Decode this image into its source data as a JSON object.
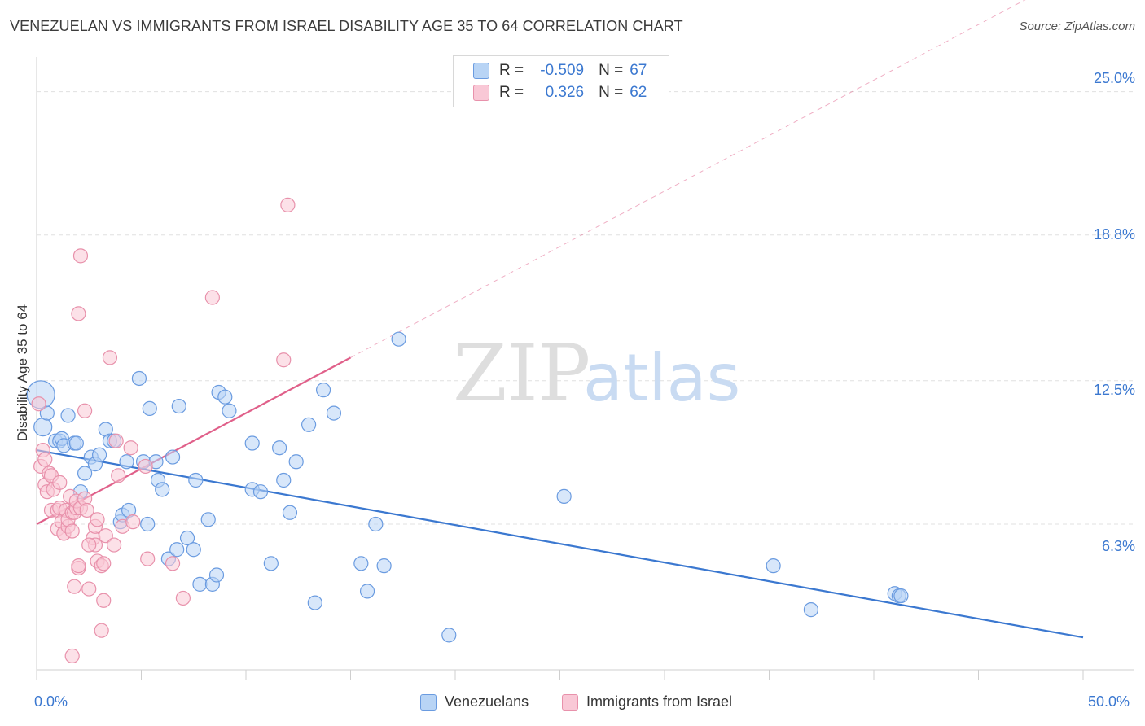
{
  "title": "VENEZUELAN VS IMMIGRANTS FROM ISRAEL DISABILITY AGE 35 TO 64 CORRELATION CHART",
  "source": "Source: ZipAtlas.com",
  "watermark": {
    "zip": "ZIP",
    "atlas": "atlas"
  },
  "legend": {
    "r_label": "R =",
    "n_label": "N =",
    "rows": [
      {
        "r": "-0.509",
        "n": "67",
        "fill": "#b8d4f5",
        "stroke": "#6a9be0"
      },
      {
        "r": "0.326",
        "n": "62",
        "fill": "#f9c8d6",
        "stroke": "#e891ab"
      }
    ]
  },
  "bottom_legend": [
    "Venezuelans",
    "Immigrants from Israel"
  ],
  "colors": {
    "blue": "#3b78d0",
    "blue_fill": "#b8d4f5",
    "pink": "#e0608a",
    "pink_fill": "#f9c8d6",
    "grid": "#e0e0e0"
  },
  "chart_data": {
    "type": "scatter",
    "title": "VENEZUELAN VS IMMIGRANTS FROM ISRAEL DISABILITY AGE 35 TO 64 CORRELATION CHART",
    "xlabel": "",
    "ylabel": "Disability Age 35 to 64",
    "xlim": [
      0,
      50
    ],
    "ylim": [
      0,
      26.5
    ],
    "x_tick_labels": [
      "0.0%",
      "50.0%"
    ],
    "y_ticks": [
      6.3,
      12.5,
      18.8,
      25.0
    ],
    "y_tick_labels": [
      "6.3%",
      "12.5%",
      "18.8%",
      "25.0%"
    ],
    "grid": true,
    "series": [
      {
        "name": "Venezuelans",
        "color": "#3b78d0",
        "r": -0.509,
        "n": 67,
        "trend": {
          "x": [
            0,
            50
          ],
          "y": [
            9.5,
            1.4
          ],
          "style": "solid"
        },
        "points": [
          [
            0.2,
            11.9
          ],
          [
            0.3,
            10.5
          ],
          [
            0.5,
            11.1
          ],
          [
            0.9,
            9.9
          ],
          [
            1.1,
            9.9
          ],
          [
            1.2,
            10.0
          ],
          [
            1.3,
            9.7
          ],
          [
            1.5,
            11.0
          ],
          [
            1.8,
            9.8
          ],
          [
            1.9,
            9.8
          ],
          [
            2.1,
            7.7
          ],
          [
            2.3,
            8.5
          ],
          [
            2.6,
            9.2
          ],
          [
            2.8,
            8.9
          ],
          [
            3.0,
            9.3
          ],
          [
            3.3,
            10.4
          ],
          [
            3.5,
            9.9
          ],
          [
            3.7,
            9.9
          ],
          [
            4.0,
            6.4
          ],
          [
            4.1,
            6.7
          ],
          [
            4.3,
            9.0
          ],
          [
            4.4,
            6.9
          ],
          [
            4.9,
            12.6
          ],
          [
            5.1,
            9.0
          ],
          [
            5.3,
            6.3
          ],
          [
            5.4,
            11.3
          ],
          [
            5.7,
            9.0
          ],
          [
            5.8,
            8.2
          ],
          [
            6.0,
            7.8
          ],
          [
            6.3,
            4.8
          ],
          [
            6.5,
            9.2
          ],
          [
            6.7,
            5.2
          ],
          [
            6.8,
            11.4
          ],
          [
            7.2,
            5.7
          ],
          [
            7.5,
            5.2
          ],
          [
            7.6,
            8.2
          ],
          [
            7.8,
            3.7
          ],
          [
            8.2,
            6.5
          ],
          [
            8.4,
            3.7
          ],
          [
            8.6,
            4.1
          ],
          [
            8.7,
            12.0
          ],
          [
            9.0,
            11.8
          ],
          [
            9.2,
            11.2
          ],
          [
            10.3,
            9.8
          ],
          [
            10.3,
            7.8
          ],
          [
            10.7,
            7.7
          ],
          [
            11.2,
            4.6
          ],
          [
            11.6,
            9.6
          ],
          [
            11.8,
            8.2
          ],
          [
            12.1,
            6.8
          ],
          [
            12.4,
            9.0
          ],
          [
            13.0,
            10.6
          ],
          [
            13.3,
            2.9
          ],
          [
            13.7,
            12.1
          ],
          [
            14.2,
            11.1
          ],
          [
            15.5,
            4.6
          ],
          [
            15.8,
            3.4
          ],
          [
            16.2,
            6.3
          ],
          [
            16.6,
            4.5
          ],
          [
            17.3,
            14.3
          ],
          [
            19.7,
            1.5
          ],
          [
            25.2,
            7.5
          ],
          [
            35.2,
            4.5
          ],
          [
            37.0,
            2.6
          ],
          [
            41.0,
            3.3
          ],
          [
            41.2,
            3.2
          ],
          [
            41.3,
            3.2
          ]
        ]
      },
      {
        "name": "Immigrants from Israel",
        "color": "#e0608a",
        "r": 0.326,
        "n": 62,
        "trend": {
          "x": [
            0,
            15
          ],
          "y": [
            6.3,
            13.5
          ],
          "style": "solid",
          "extended_to": [
            50,
            30.3
          ],
          "extended_style": "dashed"
        },
        "points": [
          [
            0.1,
            11.5
          ],
          [
            0.2,
            8.8
          ],
          [
            0.3,
            9.5
          ],
          [
            0.4,
            9.1
          ],
          [
            0.4,
            8.0
          ],
          [
            0.5,
            7.7
          ],
          [
            0.6,
            8.5
          ],
          [
            0.7,
            8.4
          ],
          [
            0.7,
            6.9
          ],
          [
            0.8,
            7.8
          ],
          [
            1.0,
            6.9
          ],
          [
            1.0,
            6.1
          ],
          [
            1.1,
            7.0
          ],
          [
            1.1,
            8.1
          ],
          [
            1.2,
            6.4
          ],
          [
            1.3,
            5.9
          ],
          [
            1.3,
            5.9
          ],
          [
            1.4,
            6.9
          ],
          [
            1.5,
            6.2
          ],
          [
            1.5,
            6.5
          ],
          [
            1.6,
            7.5
          ],
          [
            1.7,
            6.8
          ],
          [
            1.7,
            6.0
          ],
          [
            1.7,
            0.6
          ],
          [
            1.8,
            6.8
          ],
          [
            1.8,
            3.6
          ],
          [
            1.9,
            7.0
          ],
          [
            1.9,
            7.3
          ],
          [
            2.0,
            4.4
          ],
          [
            2.0,
            4.5
          ],
          [
            2.0,
            15.4
          ],
          [
            2.1,
            7.0
          ],
          [
            2.1,
            17.9
          ],
          [
            2.3,
            7.4
          ],
          [
            2.3,
            11.2
          ],
          [
            2.4,
            6.9
          ],
          [
            2.5,
            3.5
          ],
          [
            2.7,
            5.7
          ],
          [
            2.8,
            6.2
          ],
          [
            2.8,
            5.4
          ],
          [
            2.9,
            6.5
          ],
          [
            2.9,
            4.7
          ],
          [
            3.1,
            1.7
          ],
          [
            3.1,
            4.5
          ],
          [
            3.2,
            3.0
          ],
          [
            3.2,
            4.6
          ],
          [
            3.3,
            5.8
          ],
          [
            3.5,
            13.5
          ],
          [
            3.7,
            5.4
          ],
          [
            3.8,
            9.9
          ],
          [
            3.9,
            8.4
          ],
          [
            4.1,
            6.2
          ],
          [
            4.5,
            9.6
          ],
          [
            4.6,
            6.4
          ],
          [
            5.2,
            8.8
          ],
          [
            5.3,
            4.8
          ],
          [
            6.5,
            4.6
          ],
          [
            7.0,
            3.1
          ],
          [
            8.4,
            16.1
          ],
          [
            11.8,
            13.4
          ],
          [
            12.0,
            20.1
          ],
          [
            2.5,
            5.4
          ]
        ]
      }
    ]
  }
}
